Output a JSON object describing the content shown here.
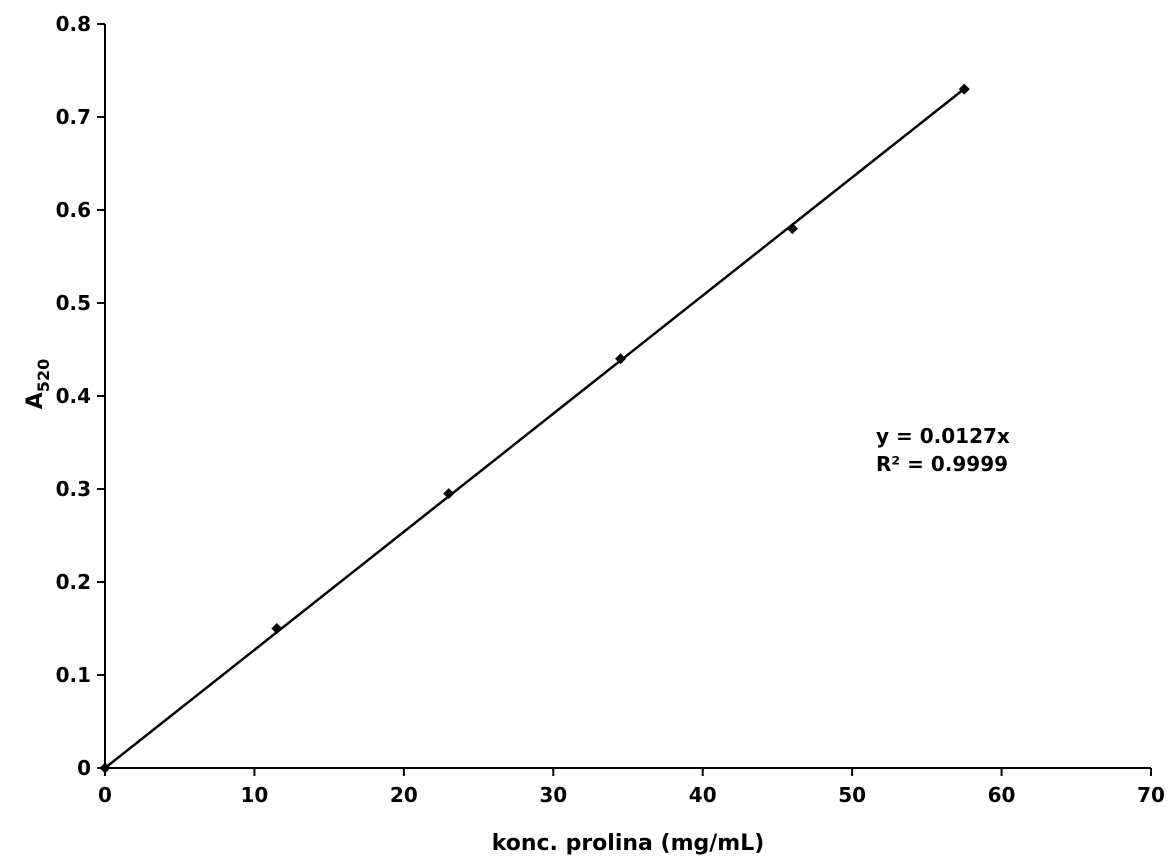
{
  "chart_data": {
    "type": "scatter",
    "xlabel": "konc. prolina (mg/mL)",
    "ylabel_main": "A",
    "ylabel_sub": "520",
    "xlim": [
      0,
      70
    ],
    "ylim": [
      0,
      0.8
    ],
    "x_ticks": [
      0,
      10,
      20,
      30,
      40,
      50,
      60,
      70
    ],
    "x_tick_labels": [
      "0",
      "10",
      "20",
      "30",
      "40",
      "50",
      "60",
      "70"
    ],
    "y_ticks": [
      0,
      0.1,
      0.2,
      0.3,
      0.4,
      0.5,
      0.6,
      0.7,
      0.8
    ],
    "y_tick_labels": [
      "0",
      "0.1",
      "0.2",
      "0.3",
      "0.4",
      "0.5",
      "0.6",
      "0.7",
      "0.8"
    ],
    "grid": false,
    "legend": "none",
    "series": [
      {
        "x": [
          0,
          11.5,
          23,
          34.5,
          46,
          57.5
        ],
        "y": [
          0,
          0.15,
          0.295,
          0.44,
          0.58,
          0.73
        ],
        "marker": "diamond",
        "color": "#000000"
      }
    ],
    "trendline": {
      "type": "linear",
      "slope": 0.0127,
      "intercept": 0,
      "x_range": [
        0,
        57.5
      ],
      "equation": "y = 0.0127x",
      "r_squared": "R² = 0.9999"
    }
  }
}
